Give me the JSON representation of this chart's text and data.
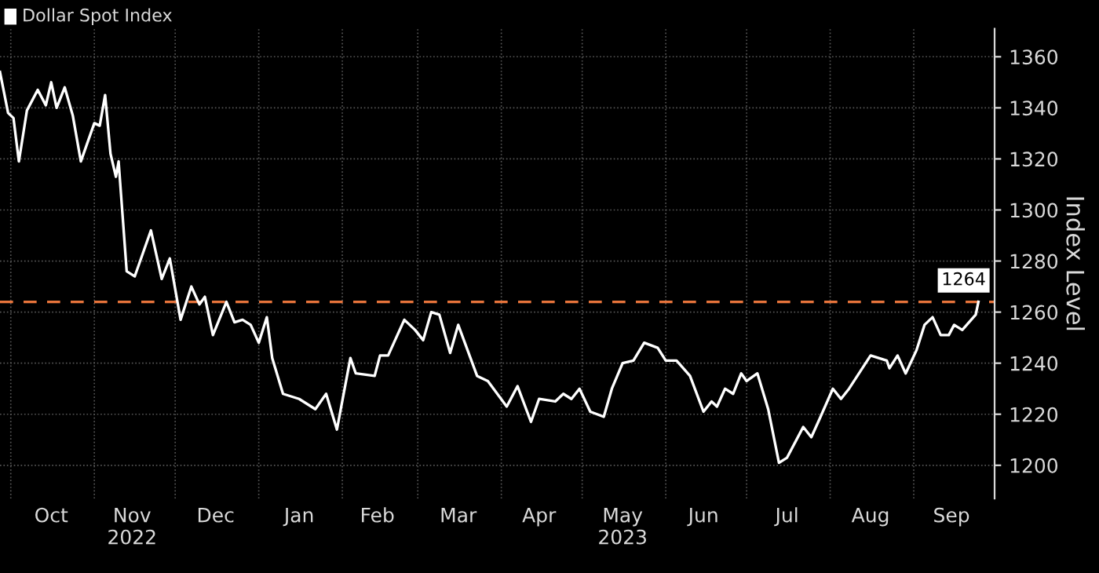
{
  "chart_data": {
    "type": "line",
    "ylabel": "Index Level",
    "x": [
      "2022-09-27",
      "2022-09-30",
      "2022-10-02",
      "2022-10-04",
      "2022-10-07",
      "2022-10-11",
      "2022-10-14",
      "2022-10-16",
      "2022-10-18",
      "2022-10-21",
      "2022-10-24",
      "2022-10-27",
      "2022-11-01",
      "2022-11-03",
      "2022-11-05",
      "2022-11-07",
      "2022-11-09",
      "2022-11-10",
      "2022-11-13",
      "2022-11-16",
      "2022-11-22",
      "2022-11-26",
      "2022-11-29",
      "2022-12-03",
      "2022-12-07",
      "2022-12-10",
      "2022-12-12",
      "2022-12-15",
      "2022-12-20",
      "2022-12-23",
      "2022-12-26",
      "2022-12-29",
      "2023-01-01",
      "2023-01-04",
      "2023-01-06",
      "2023-01-10",
      "2023-01-16",
      "2023-01-22",
      "2023-01-26",
      "2023-01-30",
      "2023-02-04",
      "2023-02-06",
      "2023-02-13",
      "2023-02-15",
      "2023-02-18",
      "2023-02-24",
      "2023-02-28",
      "2023-03-03",
      "2023-03-06",
      "2023-03-09",
      "2023-03-13",
      "2023-03-16",
      "2023-03-23",
      "2023-03-27",
      "2023-04-03",
      "2023-04-07",
      "2023-04-12",
      "2023-04-15",
      "2023-04-21",
      "2023-04-24",
      "2023-04-27",
      "2023-04-30",
      "2023-05-04",
      "2023-05-09",
      "2023-05-12",
      "2023-05-16",
      "2023-05-20",
      "2023-05-24",
      "2023-05-29",
      "2023-06-01",
      "2023-06-05",
      "2023-06-10",
      "2023-06-15",
      "2023-06-18",
      "2023-06-20",
      "2023-06-23",
      "2023-06-26",
      "2023-06-29",
      "2023-07-01",
      "2023-07-05",
      "2023-07-09",
      "2023-07-13",
      "2023-07-16",
      "2023-07-22",
      "2023-07-25",
      "2023-07-28",
      "2023-08-02",
      "2023-08-05",
      "2023-08-08",
      "2023-08-16",
      "2023-08-22",
      "2023-08-23",
      "2023-08-26",
      "2023-08-29",
      "2023-09-02",
      "2023-09-05",
      "2023-09-08",
      "2023-09-11",
      "2023-09-14",
      "2023-09-16",
      "2023-09-19",
      "2023-09-24",
      "2023-09-25"
    ],
    "series": [
      {
        "name": "Dollar Spot Index",
        "color": "#ffffff",
        "values": [
          1354,
          1338,
          1336,
          1319,
          1339,
          1347,
          1341,
          1350,
          1340,
          1348,
          1337,
          1319,
          1334,
          1333,
          1345,
          1322,
          1313,
          1319,
          1276,
          1274,
          1292,
          1273,
          1281,
          1257,
          1270,
          1263,
          1266,
          1251,
          1264,
          1256,
          1257,
          1255,
          1248,
          1258,
          1242,
          1228,
          1226,
          1222,
          1228,
          1214,
          1242,
          1236,
          1235,
          1243,
          1243,
          1257,
          1253,
          1249,
          1260,
          1259,
          1244,
          1255,
          1235,
          1233,
          1223,
          1231,
          1217,
          1226,
          1225,
          1228,
          1226,
          1230,
          1221,
          1219,
          1230,
          1240,
          1241,
          1248,
          1246,
          1241,
          1241,
          1235,
          1221,
          1225,
          1223,
          1230,
          1228,
          1236,
          1233,
          1236,
          1222,
          1201,
          1203,
          1215,
          1211,
          1218,
          1230,
          1226,
          1230,
          1243,
          1241,
          1238,
          1243,
          1236,
          1245,
          1255,
          1258,
          1251,
          1251,
          1255,
          1253,
          1259,
          1264
        ]
      }
    ],
    "xlim": [
      "2022-09-27",
      "2023-10-01"
    ],
    "xticks": [
      {
        "value": "2022-10-01",
        "label": null
      },
      {
        "value": "2022-10-16",
        "label": "Oct"
      },
      {
        "value": "2022-11-01",
        "label": null
      },
      {
        "value": "2022-11-15",
        "label": "Nov\n2022"
      },
      {
        "value": "2022-12-01",
        "label": null
      },
      {
        "value": "2022-12-16",
        "label": "Dec"
      },
      {
        "value": "2023-01-01",
        "label": null
      },
      {
        "value": "2023-01-16",
        "label": "Jan"
      },
      {
        "value": "2023-02-01",
        "label": null
      },
      {
        "value": "2023-02-14",
        "label": "Feb"
      },
      {
        "value": "2023-03-01",
        "label": null
      },
      {
        "value": "2023-03-16",
        "label": "Mar"
      },
      {
        "value": "2023-04-01",
        "label": null
      },
      {
        "value": "2023-04-15",
        "label": "Apr"
      },
      {
        "value": "2023-05-01",
        "label": null
      },
      {
        "value": "2023-05-16",
        "label": "May\n2023"
      },
      {
        "value": "2023-06-01",
        "label": null
      },
      {
        "value": "2023-06-15",
        "label": "Jun"
      },
      {
        "value": "2023-07-01",
        "label": null
      },
      {
        "value": "2023-07-16",
        "label": "Jul"
      },
      {
        "value": "2023-08-01",
        "label": null
      },
      {
        "value": "2023-08-16",
        "label": "Aug"
      },
      {
        "value": "2023-09-01",
        "label": null
      },
      {
        "value": "2023-09-15",
        "label": "Sep"
      }
    ],
    "ylim": [
      1187,
      1371
    ],
    "yticks": [
      1200,
      1220,
      1240,
      1260,
      1280,
      1300,
      1320,
      1340,
      1360
    ],
    "ref_lines": [
      {
        "axis": "y",
        "value": 1264,
        "label": "1264",
        "color": "#e8743b",
        "line_style": "dashed"
      }
    ],
    "grid": true,
    "legend": "top left",
    "line_style": "solid",
    "marker": "none"
  }
}
